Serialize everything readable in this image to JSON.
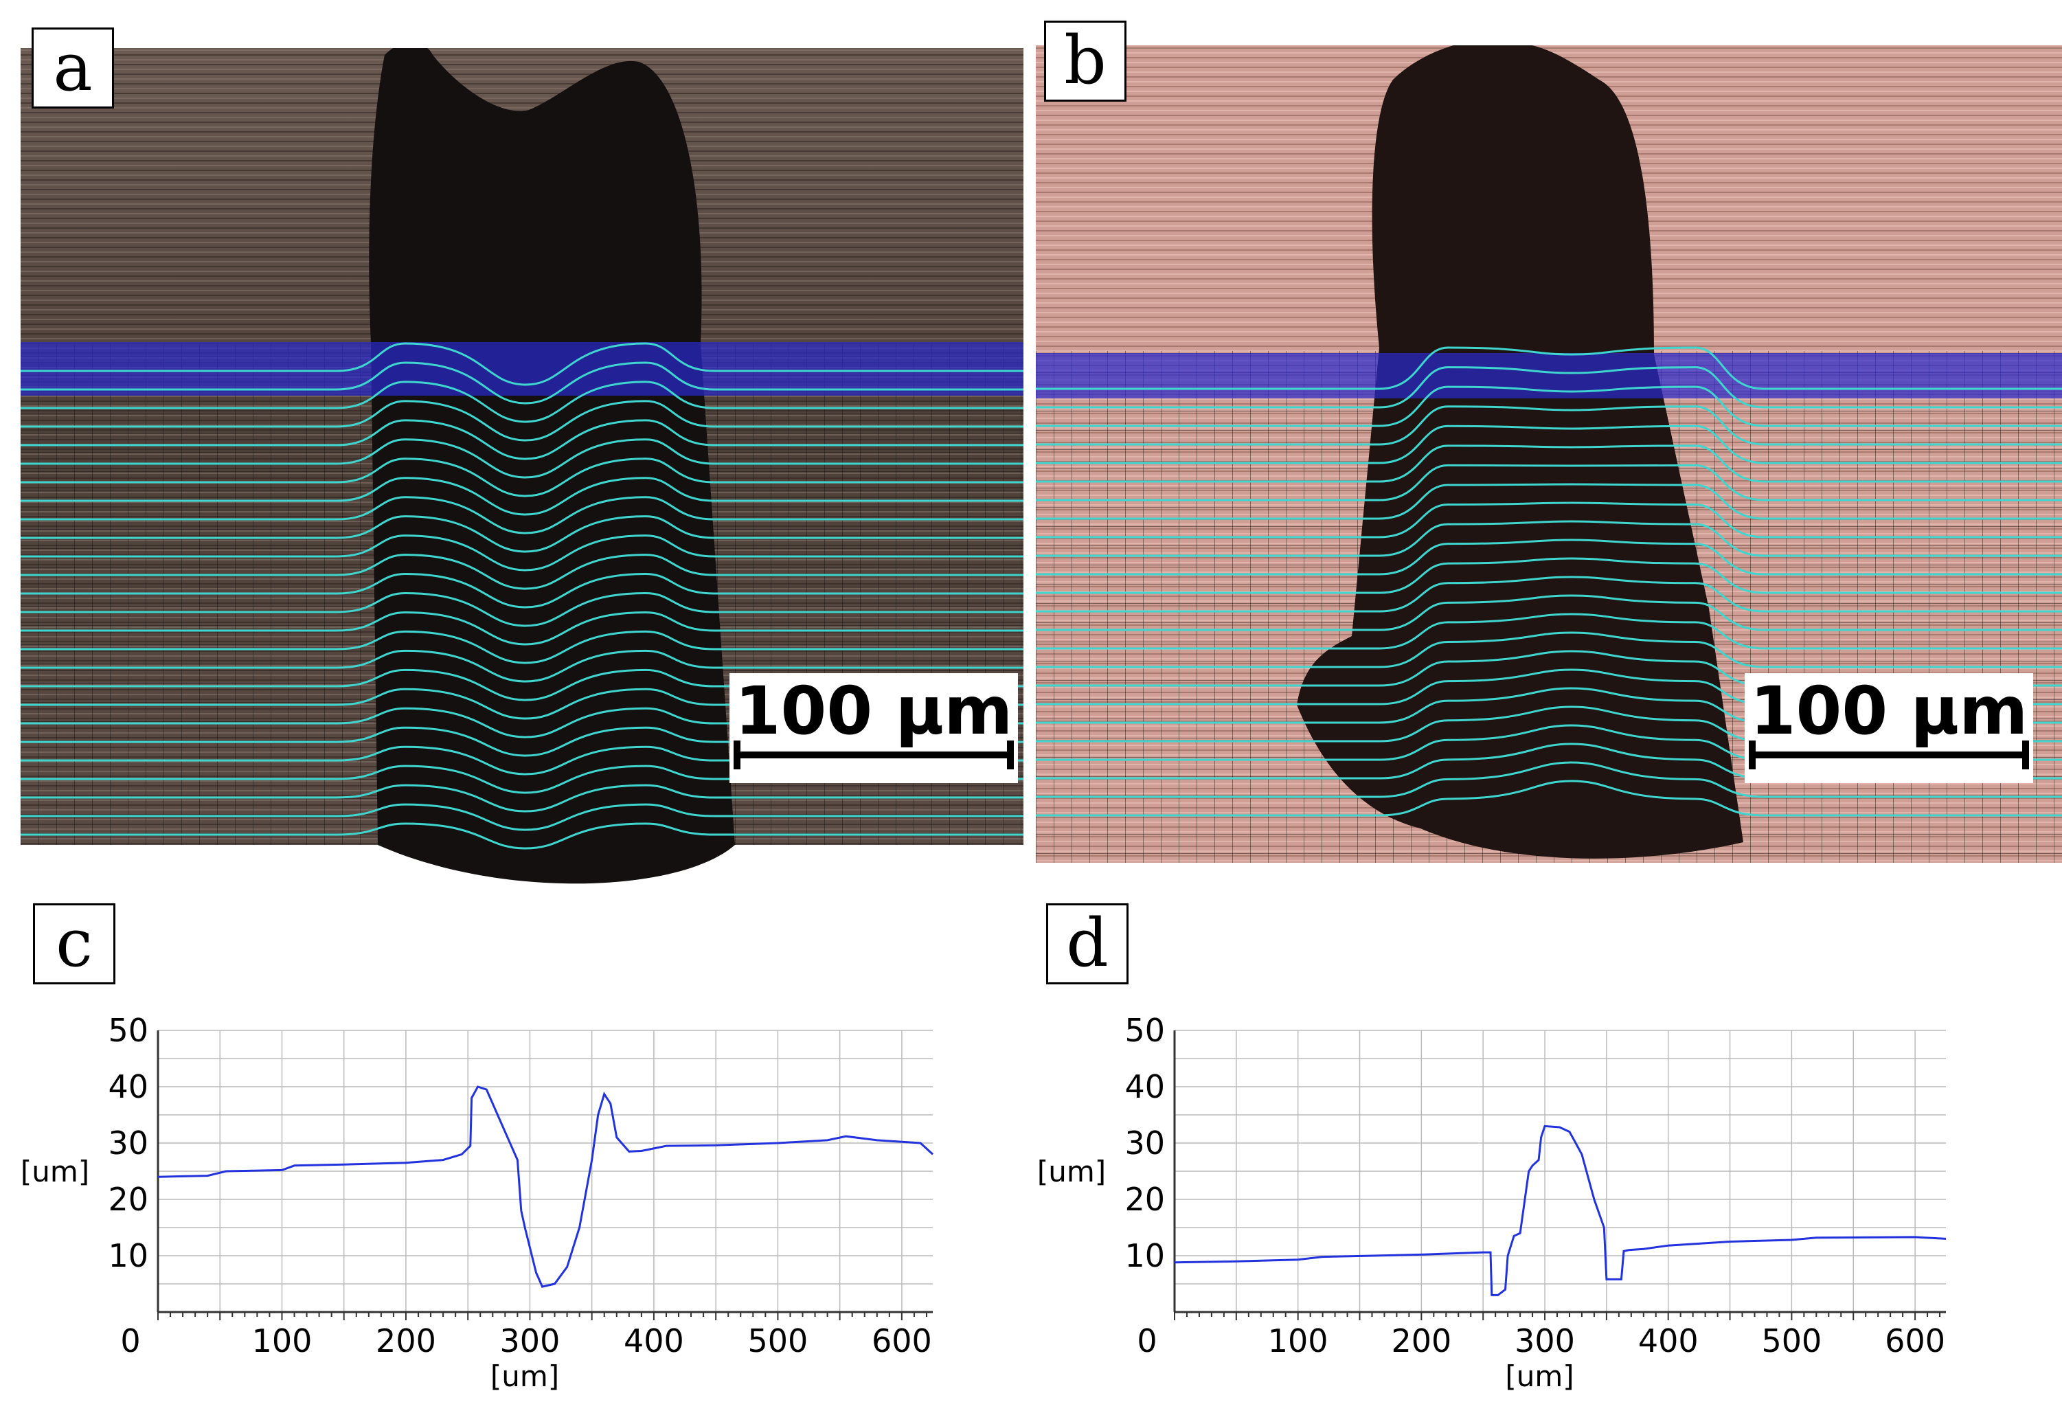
{
  "panels": {
    "a": {
      "letter": "a",
      "scale_bar": "100 µm"
    },
    "b": {
      "letter": "b",
      "scale_bar": "100 µm"
    },
    "c": {
      "letter": "c"
    },
    "d": {
      "letter": "d"
    }
  },
  "colors": {
    "profile_line": "#2233dd",
    "overlay_band": "#2a2ad0",
    "contour_lines": "#3fd6cf",
    "grid": "#999999",
    "photo_a_bg": "#4a3d37",
    "photo_b_bg": "#cf9f95"
  },
  "chart_data": [
    {
      "type": "line",
      "panel": "c",
      "xlabel": "[um]",
      "ylabel": "[um]",
      "xlim": [
        0,
        625
      ],
      "ylim": [
        0,
        50
      ],
      "xticks": [
        0,
        100,
        200,
        300,
        400,
        500,
        600
      ],
      "yticks": [
        10,
        20,
        30,
        40,
        50
      ],
      "grid": true,
      "series": [
        {
          "x": [
            0,
            40,
            55,
            100,
            110,
            150,
            200,
            230,
            245,
            252,
            253,
            258,
            265,
            270,
            280,
            290,
            293,
            296,
            305,
            310,
            320,
            330,
            340,
            350,
            355,
            360,
            365,
            370,
            380,
            390,
            410,
            450,
            500,
            540,
            555,
            580,
            615,
            625
          ],
          "y": [
            24,
            24.2,
            25,
            25.2,
            26,
            26.2,
            26.5,
            27,
            28,
            29.5,
            38,
            40,
            39.5,
            37,
            32,
            27,
            18,
            15,
            7,
            4.5,
            5,
            8,
            15,
            27,
            35,
            38.7,
            37,
            31,
            28.5,
            28.6,
            29.5,
            29.6,
            30,
            30.5,
            31.2,
            30.5,
            30,
            28
          ]
        }
      ]
    },
    {
      "type": "line",
      "panel": "d",
      "xlabel": "[um]",
      "ylabel": "[um]",
      "xlim": [
        0,
        625
      ],
      "ylim": [
        0,
        50
      ],
      "xticks": [
        0,
        100,
        200,
        300,
        400,
        500,
        600
      ],
      "yticks": [
        10,
        20,
        30,
        40,
        50
      ],
      "grid": true,
      "series": [
        {
          "x": [
            0,
            50,
            100,
            120,
            200,
            250,
            256,
            257,
            262,
            268,
            270,
            275,
            280,
            287,
            290,
            295,
            297,
            300,
            312,
            320,
            325,
            330,
            335,
            340,
            348,
            350,
            362,
            364,
            368,
            380,
            400,
            450,
            500,
            520,
            600,
            625
          ],
          "y": [
            8.8,
            9.0,
            9.3,
            9.8,
            10.2,
            10.6,
            10.6,
            3.0,
            3.0,
            4.0,
            10.0,
            13.5,
            14.0,
            25.0,
            26.0,
            27.0,
            31.0,
            33.0,
            32.8,
            32.0,
            30.0,
            28.0,
            24.0,
            20.0,
            15.0,
            5.8,
            5.8,
            10.8,
            11.0,
            11.2,
            11.8,
            12.5,
            12.8,
            13.2,
            13.3,
            13.0
          ]
        }
      ]
    }
  ]
}
